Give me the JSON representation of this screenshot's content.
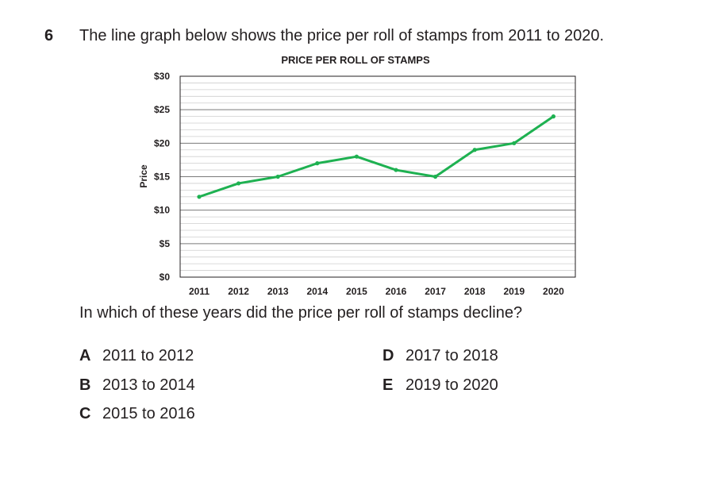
{
  "question": {
    "number": "6",
    "text": "The line graph below shows the price per roll of stamps from 2011 to 2020.",
    "followup": "In which of these years did the price per roll of stamps decline?"
  },
  "options": [
    {
      "letter": "A",
      "text": "2011 to 2012"
    },
    {
      "letter": "B",
      "text": "2013 to 2014"
    },
    {
      "letter": "C",
      "text": "2015 to 2016"
    },
    {
      "letter": "D",
      "text": "2017 to 2018"
    },
    {
      "letter": "E",
      "text": "2019 to 2020"
    }
  ],
  "chart_data": {
    "type": "line",
    "title": "PRICE PER ROLL OF STAMPS",
    "xlabel": "",
    "ylabel": "Price",
    "categories": [
      "2011",
      "2012",
      "2013",
      "2014",
      "2015",
      "2016",
      "2017",
      "2018",
      "2019",
      "2020"
    ],
    "y_tick_labels": [
      "$0",
      "$5",
      "$10",
      "$15",
      "$20",
      "$25",
      "$30"
    ],
    "y_ticks": [
      0,
      5,
      10,
      15,
      20,
      25,
      30
    ],
    "ylim": [
      0,
      30
    ],
    "grid": true,
    "series": [
      {
        "values": [
          12,
          14,
          15,
          17,
          18,
          16,
          15,
          19,
          20,
          24
        ],
        "color": "#1eb151"
      }
    ]
  }
}
